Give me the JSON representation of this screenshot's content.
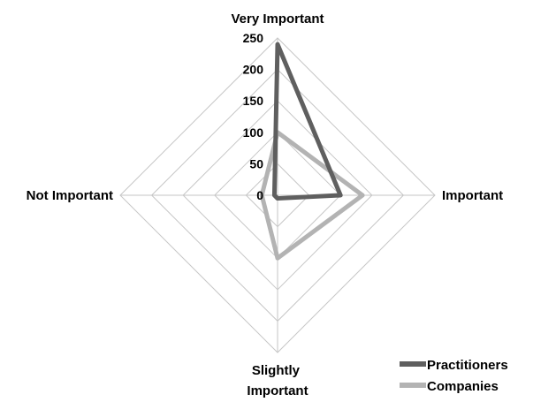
{
  "chart_data": {
    "type": "radar",
    "categories": [
      "Very Important",
      "Important",
      "Slightly Important",
      "Not Important"
    ],
    "series": [
      {
        "name": "Practitioners",
        "values": [
          240,
          100,
          5,
          5
        ],
        "color": "#5f5f5f"
      },
      {
        "name": "Companies",
        "values": [
          100,
          135,
          100,
          25
        ],
        "color": "#b3b3b3"
      }
    ],
    "r_ticks": [
      0,
      50,
      100,
      150,
      200,
      250
    ],
    "r_range": [
      0,
      250
    ],
    "grid": true,
    "legend_position": "bottom-right",
    "grid_color": "#c6c6c6"
  }
}
